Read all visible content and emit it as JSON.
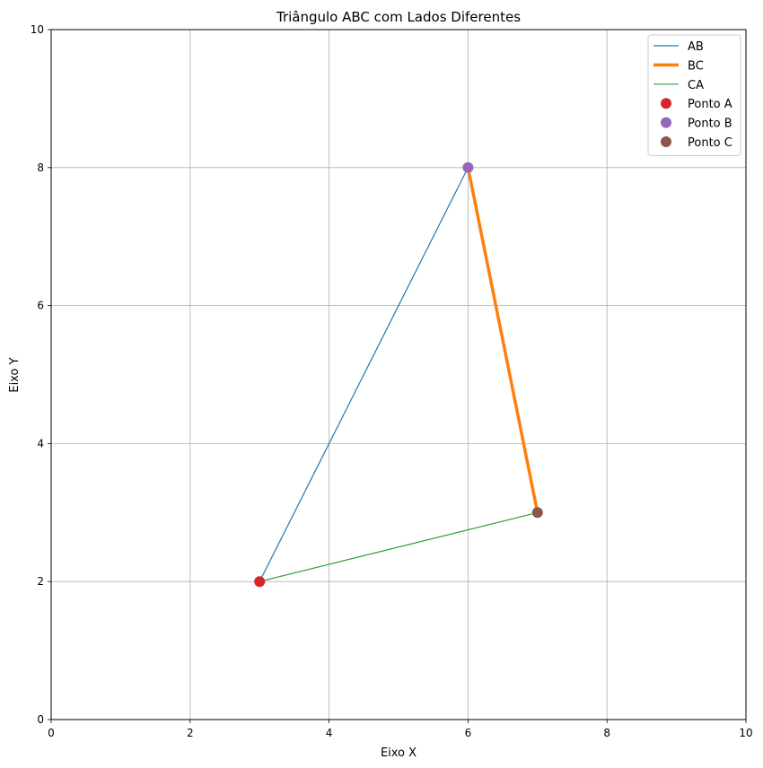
{
  "chart_data": {
    "type": "line",
    "title": "Triângulo ABC com Lados Diferentes",
    "xlabel": "Eixo X",
    "ylabel": "Eixo Y",
    "xlim": [
      0,
      10
    ],
    "ylim": [
      0,
      10
    ],
    "xticks": [
      0,
      2,
      4,
      6,
      8,
      10
    ],
    "yticks": [
      0,
      2,
      4,
      6,
      8,
      10
    ],
    "grid": true,
    "legend_position": "top-right",
    "segments": [
      {
        "name": "AB",
        "x": [
          3,
          6
        ],
        "y": [
          2,
          8
        ],
        "color": "#1f77b4",
        "style": "thin"
      },
      {
        "name": "BC",
        "x": [
          6,
          7
        ],
        "y": [
          8,
          3
        ],
        "color": "#ff7f0e",
        "style": "thick"
      },
      {
        "name": "CA",
        "x": [
          7,
          3
        ],
        "y": [
          3,
          2
        ],
        "color": "#2ca02c",
        "style": "thin"
      }
    ],
    "points": [
      {
        "name": "Ponto A",
        "x": 3,
        "y": 2,
        "color": "#d62728"
      },
      {
        "name": "Ponto B",
        "x": 6,
        "y": 8,
        "color": "#9467bd"
      },
      {
        "name": "Ponto C",
        "x": 7,
        "y": 3,
        "color": "#8c564b"
      }
    ]
  }
}
